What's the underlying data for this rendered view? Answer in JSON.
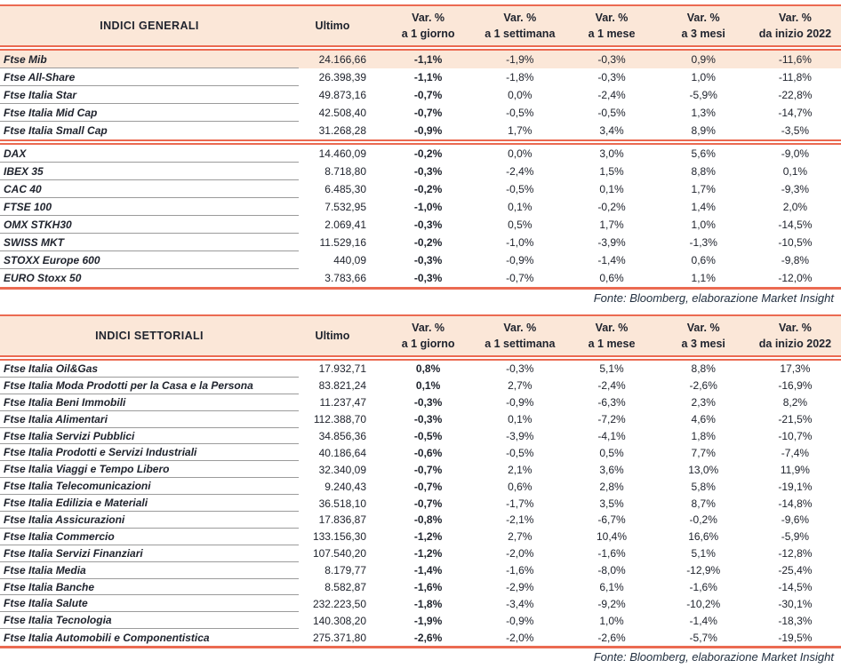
{
  "colors": {
    "accent_red": "#EB6A51",
    "header_bg": "#FBE7D8",
    "highlight_row_bg": "#FBE7D8",
    "text_dark": "#20242E",
    "row_separator_gray": "#9B9B9B"
  },
  "tables": [
    {
      "title": "INDICI GENERALI",
      "columns": [
        {
          "top": "Ultimo",
          "bottom": ""
        },
        {
          "top": "Var. %",
          "bottom": "a 1 giorno"
        },
        {
          "top": "Var. %",
          "bottom": "a 1 settimana"
        },
        {
          "top": "Var. %",
          "bottom": "a 1 mese"
        },
        {
          "top": "Var. %",
          "bottom": "a 3 mesi"
        },
        {
          "top": "Var. %",
          "bottom": "da inizio 2022"
        }
      ],
      "groups": [
        [
          {
            "name": "Ftse Mib",
            "ultimo": "24.166,66",
            "pct": [
              "-1,1%",
              "-1,9%",
              "-0,3%",
              "0,9%",
              "-11,6%"
            ],
            "highlight": true
          },
          {
            "name": "Ftse All-Share",
            "ultimo": "26.398,39",
            "pct": [
              "-1,1%",
              "-1,8%",
              "-0,3%",
              "1,0%",
              "-11,8%"
            ]
          },
          {
            "name": "Ftse Italia Star",
            "ultimo": "49.873,16",
            "pct": [
              "-0,7%",
              "0,0%",
              "-2,4%",
              "-5,9%",
              "-22,8%"
            ]
          },
          {
            "name": "Ftse Italia Mid Cap",
            "ultimo": "42.508,40",
            "pct": [
              "-0,7%",
              "-0,5%",
              "-0,5%",
              "1,3%",
              "-14,7%"
            ]
          },
          {
            "name": "Ftse Italia Small Cap",
            "ultimo": "31.268,28",
            "pct": [
              "-0,9%",
              "1,7%",
              "3,4%",
              "8,9%",
              "-3,5%"
            ]
          }
        ],
        [
          {
            "name": "DAX",
            "ultimo": "14.460,09",
            "pct": [
              "-0,2%",
              "0,0%",
              "3,0%",
              "5,6%",
              "-9,0%"
            ]
          },
          {
            "name": "IBEX 35",
            "ultimo": "8.718,80",
            "pct": [
              "-0,3%",
              "-2,4%",
              "1,5%",
              "8,8%",
              "0,1%"
            ]
          },
          {
            "name": "CAC 40",
            "ultimo": "6.485,30",
            "pct": [
              "-0,2%",
              "-0,5%",
              "0,1%",
              "1,7%",
              "-9,3%"
            ]
          },
          {
            "name": "FTSE 100",
            "ultimo": "7.532,95",
            "pct": [
              "-1,0%",
              "0,1%",
              "-0,2%",
              "1,4%",
              "2,0%"
            ]
          },
          {
            "name": "OMX STKH30",
            "ultimo": "2.069,41",
            "pct": [
              "-0,3%",
              "0,5%",
              "1,7%",
              "1,0%",
              "-14,5%"
            ]
          },
          {
            "name": "SWISS MKT",
            "ultimo": "11.529,16",
            "pct": [
              "-0,2%",
              "-1,0%",
              "-3,9%",
              "-1,3%",
              "-10,5%"
            ]
          },
          {
            "name": "STOXX Europe 600",
            "ultimo": "440,09",
            "pct": [
              "-0,3%",
              "-0,9%",
              "-1,4%",
              "0,6%",
              "-9,8%"
            ]
          },
          {
            "name": "EURO Stoxx 50",
            "ultimo": "3.783,66",
            "pct": [
              "-0,3%",
              "-0,7%",
              "0,6%",
              "1,1%",
              "-12,0%"
            ]
          }
        ]
      ],
      "source": "Fonte: Bloomberg, elaborazione Market Insight"
    },
    {
      "title": "INDICI SETTORIALI",
      "columns": [
        {
          "top": "Ultimo",
          "bottom": ""
        },
        {
          "top": "Var. %",
          "bottom": "a 1 giorno"
        },
        {
          "top": "Var. %",
          "bottom": "a 1 settimana"
        },
        {
          "top": "Var. %",
          "bottom": "a 1 mese"
        },
        {
          "top": "Var. %",
          "bottom": "a 3 mesi"
        },
        {
          "top": "Var. %",
          "bottom": "da inizio 2022"
        }
      ],
      "groups": [
        [
          {
            "name": "Ftse Italia Oil&Gas",
            "ultimo": "17.932,71",
            "pct": [
              "0,8%",
              "-0,3%",
              "5,1%",
              "8,8%",
              "17,3%"
            ]
          },
          {
            "name": "Ftse Italia Moda Prodotti per la Casa e la Persona",
            "ultimo": "83.821,24",
            "pct": [
              "0,1%",
              "2,7%",
              "-2,4%",
              "-2,6%",
              "-16,9%"
            ]
          },
          {
            "name": "Ftse Italia Beni Immobili",
            "ultimo": "11.237,47",
            "pct": [
              "-0,3%",
              "-0,9%",
              "-6,3%",
              "2,3%",
              "8,2%"
            ]
          },
          {
            "name": "Ftse Italia Alimentari",
            "ultimo": "112.388,70",
            "pct": [
              "-0,3%",
              "0,1%",
              "-7,2%",
              "4,6%",
              "-21,5%"
            ]
          },
          {
            "name": "Ftse Italia Servizi Pubblici",
            "ultimo": "34.856,36",
            "pct": [
              "-0,5%",
              "-3,9%",
              "-4,1%",
              "1,8%",
              "-10,7%"
            ]
          },
          {
            "name": "Ftse Italia Prodotti e Servizi Industriali",
            "ultimo": "40.186,64",
            "pct": [
              "-0,6%",
              "-0,5%",
              "0,5%",
              "7,7%",
              "-7,4%"
            ]
          },
          {
            "name": "Ftse Italia Viaggi e Tempo Libero",
            "ultimo": "32.340,09",
            "pct": [
              "-0,7%",
              "2,1%",
              "3,6%",
              "13,0%",
              "11,9%"
            ]
          },
          {
            "name": "Ftse Italia Telecomunicazioni",
            "ultimo": "9.240,43",
            "pct": [
              "-0,7%",
              "0,6%",
              "2,8%",
              "5,8%",
              "-19,1%"
            ]
          },
          {
            "name": "Ftse Italia Edilizia e Materiali",
            "ultimo": "36.518,10",
            "pct": [
              "-0,7%",
              "-1,7%",
              "3,5%",
              "8,7%",
              "-14,8%"
            ]
          },
          {
            "name": "Ftse Italia Assicurazioni",
            "ultimo": "17.836,87",
            "pct": [
              "-0,8%",
              "-2,1%",
              "-6,7%",
              "-0,2%",
              "-9,6%"
            ]
          },
          {
            "name": "Ftse Italia Commercio",
            "ultimo": "133.156,30",
            "pct": [
              "-1,2%",
              "2,7%",
              "10,4%",
              "16,6%",
              "-5,9%"
            ]
          },
          {
            "name": "Ftse Italia Servizi Finanziari",
            "ultimo": "107.540,20",
            "pct": [
              "-1,2%",
              "-2,0%",
              "-1,6%",
              "5,1%",
              "-12,8%"
            ]
          },
          {
            "name": "Ftse Italia Media",
            "ultimo": "8.179,77",
            "pct": [
              "-1,4%",
              "-1,6%",
              "-8,0%",
              "-12,9%",
              "-25,4%"
            ]
          },
          {
            "name": "Ftse Italia Banche",
            "ultimo": "8.582,87",
            "pct": [
              "-1,6%",
              "-2,9%",
              "6,1%",
              "-1,6%",
              "-14,5%"
            ]
          },
          {
            "name": "Ftse Italia Salute",
            "ultimo": "232.223,50",
            "pct": [
              "-1,8%",
              "-3,4%",
              "-9,2%",
              "-10,2%",
              "-30,1%"
            ]
          },
          {
            "name": "Ftse Italia Tecnologia",
            "ultimo": "140.308,20",
            "pct": [
              "-1,9%",
              "-0,9%",
              "1,0%",
              "-1,4%",
              "-18,3%"
            ]
          },
          {
            "name": "Ftse Italia Automobili e Componentistica",
            "ultimo": "275.371,80",
            "pct": [
              "-2,6%",
              "-2,0%",
              "-2,6%",
              "-5,7%",
              "-19,5%"
            ]
          }
        ]
      ],
      "source": "Fonte: Bloomberg, elaborazione Market Insight"
    }
  ]
}
